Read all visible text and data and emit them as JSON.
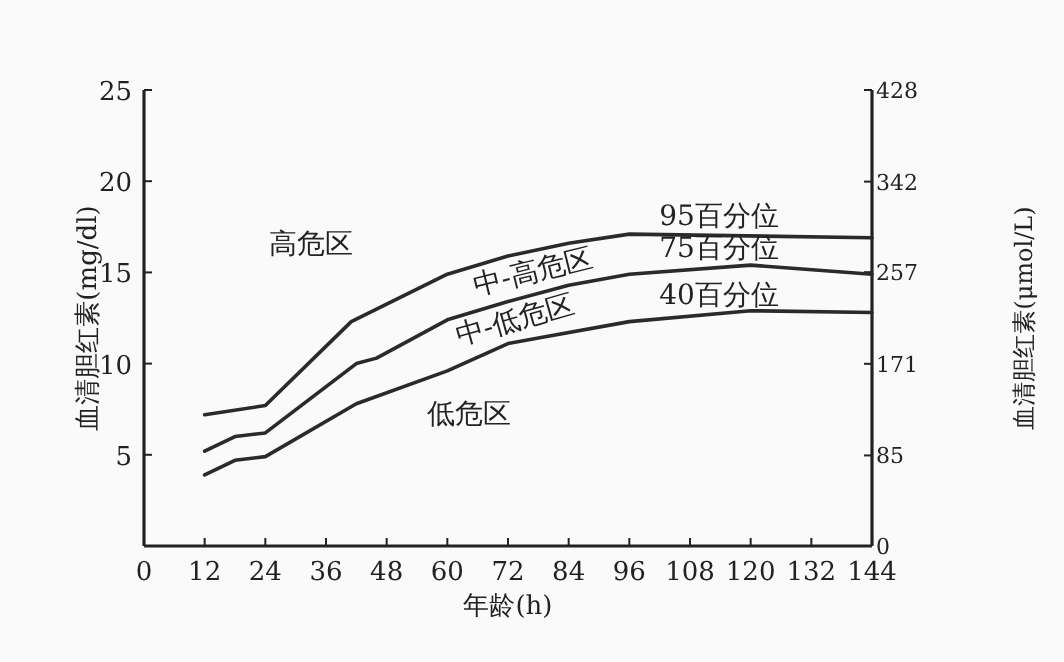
{
  "chart_data": {
    "type": "line",
    "xlabel": "年龄(h)",
    "ylabel": "血清胆红素(mg/dl)",
    "y2label": "血清胆红素(μmol/L)",
    "xlim": [
      0,
      144
    ],
    "xticks": [
      0,
      12,
      24,
      36,
      48,
      60,
      72,
      84,
      96,
      108,
      120,
      132,
      144
    ],
    "ylim": [
      0,
      25
    ],
    "yticks": [
      5,
      10,
      15,
      20,
      25
    ],
    "y2lim": [
      0,
      428
    ],
    "y2ticks": [
      0,
      85,
      171,
      257,
      342,
      428
    ],
    "grid": false,
    "legend": false,
    "marker": "none",
    "line_style": "solid",
    "series": [
      {
        "name": "95百分位",
        "color": "#2a2a2a",
        "x": [
          12,
          24,
          41,
          60,
          72,
          84,
          96,
          144
        ],
        "values": [
          7.2,
          7.7,
          12.3,
          14.9,
          15.9,
          16.6,
          17.1,
          16.9
        ]
      },
      {
        "name": "75百分位",
        "color": "#2a2a2a",
        "x": [
          12,
          18,
          24,
          42,
          46,
          60,
          72,
          84,
          96,
          120,
          144
        ],
        "values": [
          5.2,
          6.0,
          6.2,
          10.0,
          10.3,
          12.4,
          13.4,
          14.3,
          14.9,
          15.4,
          14.9
        ]
      },
      {
        "name": "40百分位",
        "color": "#2a2a2a",
        "x": [
          12,
          18,
          24,
          42,
          60,
          72,
          78,
          96,
          120,
          144
        ],
        "values": [
          3.9,
          4.7,
          4.9,
          7.8,
          9.6,
          11.1,
          11.4,
          12.3,
          12.9,
          12.8
        ]
      }
    ],
    "annotations": [
      "高危区",
      "中-高危区",
      "中-低危区",
      "低危区"
    ]
  }
}
